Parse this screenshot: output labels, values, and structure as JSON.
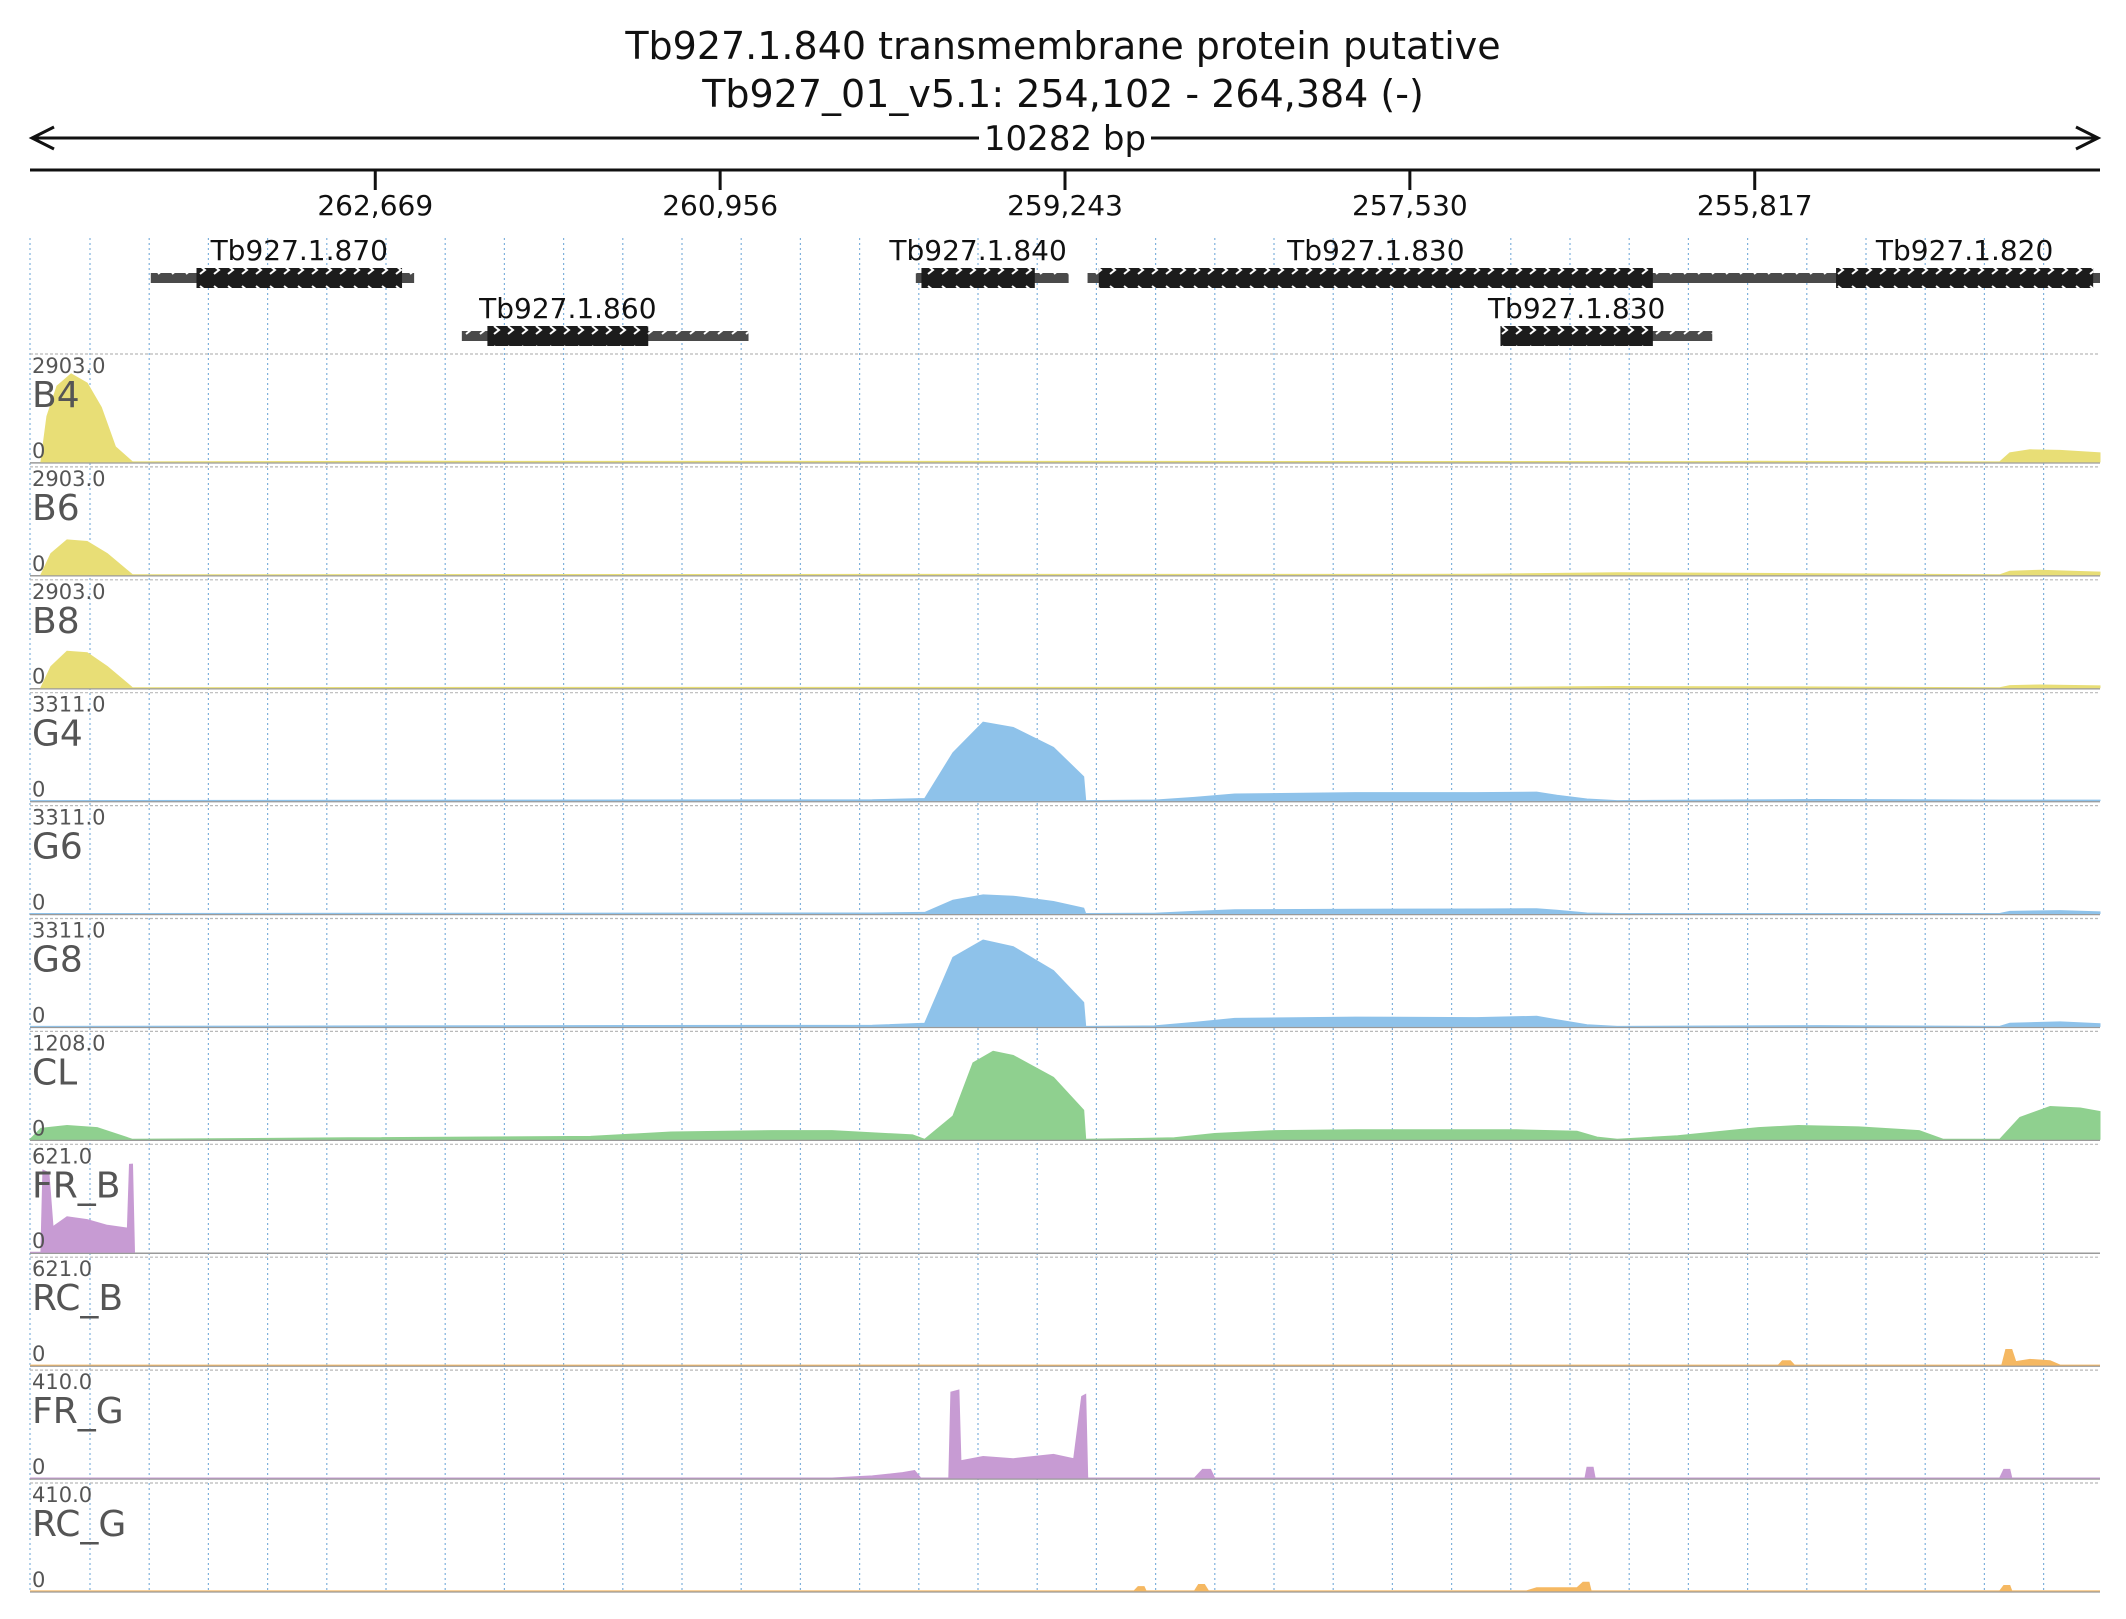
{
  "title": "Tb927.1.840  transmembrane protein  putative",
  "subtitle": "Tb927_01_v5.1: 254,102 - 264,384 (-)",
  "span_label": "10282 bp",
  "colors": {
    "yellow": "#e8de76",
    "blue": "#8ec2ea",
    "green": "#8fd08f",
    "purple": "#c79bd3",
    "orange": "#f5b862",
    "gene_thick": "#1c1c1c",
    "gene_thin": "#4a4a4a",
    "grid": "#7fb1dc",
    "axis": "#111111",
    "label": "#555555"
  },
  "chart_data": {
    "type": "area",
    "x_axis": {
      "start": 264384,
      "end": 254102,
      "strand": "-",
      "ticks": [
        "262,669",
        "260,956",
        "259,243",
        "257,530",
        "255,817"
      ],
      "tick_values": [
        262669,
        260956,
        259243,
        257530,
        255817
      ]
    },
    "genes": [
      {
        "name": "Tb927.1.870",
        "row": 0,
        "start": 263784,
        "end": 262476,
        "cds_start": 263557,
        "cds_end": 262536
      },
      {
        "name": "Tb927.1.860",
        "row": 1,
        "start": 262239,
        "end": 260815,
        "cds_start": 262112,
        "cds_end": 261313
      },
      {
        "name": "Tb927.1.840",
        "row": 0,
        "start": 259984,
        "end": 259225,
        "cds_start": 259956,
        "cds_end": 259393
      },
      {
        "name": "Tb927.1.830",
        "row": 0,
        "start": 259131,
        "end": 254102,
        "cds_start": 259075,
        "cds_end": 256323
      },
      {
        "name": "Tb927.1.830",
        "row": 1,
        "start": 257080,
        "end": 256028,
        "cds_start": 257080,
        "cds_end": 256323
      },
      {
        "name": "Tb927.1.820",
        "row": 0,
        "start": 255899,
        "end": 254269,
        "cds_start": 255413,
        "cds_end": 254136
      }
    ],
    "tracks": [
      {
        "name": "B4",
        "max_label": "2903.0",
        "min_label": "0",
        "max": 2903,
        "color": "yellow",
        "points": [
          [
            264330,
            0
          ],
          [
            264300,
            1500
          ],
          [
            264250,
            2500
          ],
          [
            264180,
            2903
          ],
          [
            264100,
            2600
          ],
          [
            264030,
            1800
          ],
          [
            263960,
            500
          ],
          [
            263875,
            0
          ],
          [
            262500,
            20
          ],
          [
            259000,
            15
          ],
          [
            256000,
            10
          ],
          [
            255800,
            20
          ],
          [
            254600,
            0
          ],
          [
            254550,
            300
          ],
          [
            254450,
            400
          ],
          [
            254300,
            380
          ],
          [
            254102,
            300
          ]
        ]
      },
      {
        "name": "B6",
        "max_label": "2903.0",
        "min_label": "0",
        "max": 2903,
        "color": "yellow",
        "points": [
          [
            264330,
            0
          ],
          [
            264280,
            700
          ],
          [
            264200,
            1150
          ],
          [
            264100,
            1100
          ],
          [
            264000,
            700
          ],
          [
            263875,
            0
          ],
          [
            262000,
            10
          ],
          [
            257200,
            15
          ],
          [
            256500,
            70
          ],
          [
            255600,
            40
          ],
          [
            254600,
            0
          ],
          [
            254550,
            120
          ],
          [
            254400,
            150
          ],
          [
            254102,
            90
          ]
        ]
      },
      {
        "name": "B8",
        "max_label": "2903.0",
        "min_label": "0",
        "max": 2903,
        "color": "yellow",
        "points": [
          [
            264330,
            0
          ],
          [
            264280,
            700
          ],
          [
            264200,
            1200
          ],
          [
            264100,
            1150
          ],
          [
            264000,
            700
          ],
          [
            263875,
            0
          ],
          [
            262000,
            10
          ],
          [
            257200,
            10
          ],
          [
            256500,
            40
          ],
          [
            255600,
            25
          ],
          [
            254600,
            0
          ],
          [
            254550,
            70
          ],
          [
            254400,
            90
          ],
          [
            254102,
            60
          ]
        ]
      },
      {
        "name": "G4",
        "max_label": "3311.0",
        "min_label": "0",
        "max": 3311,
        "color": "blue",
        "points": [
          [
            264384,
            0
          ],
          [
            262000,
            20
          ],
          [
            260200,
            30
          ],
          [
            259940,
            80
          ],
          [
            259800,
            1800
          ],
          [
            259650,
            2950
          ],
          [
            259500,
            2750
          ],
          [
            259300,
            2000
          ],
          [
            259150,
            900
          ],
          [
            259140,
            0
          ],
          [
            258800,
            20
          ],
          [
            258600,
            120
          ],
          [
            258400,
            250
          ],
          [
            257800,
            300
          ],
          [
            257200,
            300
          ],
          [
            256900,
            320
          ],
          [
            256800,
            200
          ],
          [
            256650,
            60
          ],
          [
            256500,
            0
          ],
          [
            255500,
            40
          ],
          [
            254600,
            20
          ],
          [
            254102,
            20
          ]
        ]
      },
      {
        "name": "G6",
        "max_label": "3311.0",
        "min_label": "0",
        "max": 3311,
        "color": "blue",
        "points": [
          [
            264384,
            0
          ],
          [
            262000,
            10
          ],
          [
            260200,
            20
          ],
          [
            259940,
            40
          ],
          [
            259800,
            500
          ],
          [
            259650,
            700
          ],
          [
            259500,
            650
          ],
          [
            259300,
            450
          ],
          [
            259150,
            200
          ],
          [
            259140,
            0
          ],
          [
            258800,
            10
          ],
          [
            258600,
            80
          ],
          [
            258400,
            140
          ],
          [
            257800,
            160
          ],
          [
            257200,
            170
          ],
          [
            256900,
            180
          ],
          [
            256800,
            120
          ],
          [
            256650,
            20
          ],
          [
            256500,
            0
          ],
          [
            254600,
            0
          ],
          [
            254550,
            80
          ],
          [
            254300,
            110
          ],
          [
            254102,
            60
          ]
        ]
      },
      {
        "name": "G8",
        "max_label": "3311.0",
        "min_label": "0",
        "max": 3311,
        "color": "blue",
        "points": [
          [
            264384,
            0
          ],
          [
            262000,
            25
          ],
          [
            260200,
            40
          ],
          [
            259940,
            120
          ],
          [
            259800,
            2600
          ],
          [
            259650,
            3250
          ],
          [
            259500,
            3000
          ],
          [
            259300,
            2100
          ],
          [
            259150,
            900
          ],
          [
            259140,
            0
          ],
          [
            258800,
            20
          ],
          [
            258600,
            150
          ],
          [
            258400,
            300
          ],
          [
            257800,
            350
          ],
          [
            257200,
            330
          ],
          [
            256900,
            380
          ],
          [
            256800,
            250
          ],
          [
            256650,
            60
          ],
          [
            256500,
            0
          ],
          [
            255500,
            30
          ],
          [
            254600,
            0
          ],
          [
            254550,
            120
          ],
          [
            254300,
            170
          ],
          [
            254102,
            100
          ]
        ]
      },
      {
        "name": "CL",
        "max_label": "1208.0",
        "min_label": "0",
        "max": 1208,
        "color": "green",
        "points": [
          [
            264384,
            0
          ],
          [
            264330,
            150
          ],
          [
            264200,
            190
          ],
          [
            264050,
            160
          ],
          [
            263875,
            0
          ],
          [
            262800,
            20
          ],
          [
            261600,
            40
          ],
          [
            261200,
            100
          ],
          [
            260700,
            120
          ],
          [
            260400,
            120
          ],
          [
            260000,
            60
          ],
          [
            259940,
            0
          ],
          [
            259800,
            320
          ],
          [
            259700,
            1050
          ],
          [
            259600,
            1208
          ],
          [
            259500,
            1150
          ],
          [
            259400,
            1000
          ],
          [
            259300,
            850
          ],
          [
            259150,
            400
          ],
          [
            259140,
            0
          ],
          [
            258700,
            20
          ],
          [
            258500,
            80
          ],
          [
            258200,
            120
          ],
          [
            257800,
            130
          ],
          [
            257000,
            130
          ],
          [
            256700,
            110
          ],
          [
            256600,
            30
          ],
          [
            256500,
            0
          ],
          [
            256200,
            50
          ],
          [
            255800,
            160
          ],
          [
            255600,
            190
          ],
          [
            255300,
            170
          ],
          [
            255000,
            120
          ],
          [
            254880,
            0
          ],
          [
            254600,
            0
          ],
          [
            254500,
            300
          ],
          [
            254350,
            450
          ],
          [
            254200,
            430
          ],
          [
            254102,
            380
          ]
        ]
      },
      {
        "name": "FR_B",
        "max_label": "621.0",
        "min_label": "0",
        "max": 621,
        "color": "purple",
        "points": [
          [
            264330,
            0
          ],
          [
            264320,
            580
          ],
          [
            264290,
            560
          ],
          [
            264270,
            180
          ],
          [
            264200,
            250
          ],
          [
            264100,
            230
          ],
          [
            264000,
            190
          ],
          [
            263900,
            170
          ],
          [
            263890,
            620
          ],
          [
            263875,
            621
          ],
          [
            263865,
            0
          ],
          [
            264384,
            0
          ]
        ]
      },
      {
        "name": "RC_B",
        "max_label": "621.0",
        "min_label": "0",
        "max": 621,
        "color": "orange",
        "points": [
          [
            264384,
            0
          ],
          [
            255700,
            0
          ],
          [
            255680,
            30
          ],
          [
            255640,
            30
          ],
          [
            255620,
            0
          ],
          [
            254590,
            0
          ],
          [
            254570,
            110
          ],
          [
            254540,
            110
          ],
          [
            254520,
            25
          ],
          [
            254450,
            40
          ],
          [
            254350,
            30
          ],
          [
            254300,
            0
          ],
          [
            254102,
            0
          ]
        ]
      },
      {
        "name": "FR_G",
        "max_label": "410.0",
        "min_label": "0",
        "max": 410,
        "color": "purple",
        "points": [
          [
            264384,
            0
          ],
          [
            260400,
            0
          ],
          [
            260200,
            10
          ],
          [
            260050,
            25
          ],
          [
            259990,
            35
          ],
          [
            259960,
            0
          ],
          [
            259820,
            0
          ],
          [
            259810,
            400
          ],
          [
            259770,
            410
          ],
          [
            259760,
            80
          ],
          [
            259650,
            100
          ],
          [
            259500,
            90
          ],
          [
            259300,
            110
          ],
          [
            259200,
            90
          ],
          [
            259160,
            380
          ],
          [
            259140,
            390
          ],
          [
            259130,
            0
          ],
          [
            258600,
            0
          ],
          [
            258560,
            40
          ],
          [
            258520,
            40
          ],
          [
            258500,
            0
          ],
          [
            256660,
            0
          ],
          [
            256650,
            50
          ],
          [
            256620,
            50
          ],
          [
            256610,
            0
          ],
          [
            254600,
            0
          ],
          [
            254580,
            40
          ],
          [
            254550,
            40
          ],
          [
            254540,
            0
          ],
          [
            254102,
            0
          ]
        ]
      },
      {
        "name": "RC_G",
        "max_label": "410.0",
        "min_label": "0",
        "max": 410,
        "color": "orange",
        "points": [
          [
            264384,
            0
          ],
          [
            258900,
            0
          ],
          [
            258880,
            20
          ],
          [
            258850,
            20
          ],
          [
            258840,
            0
          ],
          [
            258600,
            0
          ],
          [
            258580,
            30
          ],
          [
            258550,
            30
          ],
          [
            258530,
            0
          ],
          [
            256950,
            0
          ],
          [
            256900,
            15
          ],
          [
            256700,
            15
          ],
          [
            256670,
            40
          ],
          [
            256640,
            40
          ],
          [
            256630,
            0
          ],
          [
            254600,
            0
          ],
          [
            254580,
            25
          ],
          [
            254550,
            25
          ],
          [
            254540,
            0
          ],
          [
            254102,
            0
          ]
        ]
      }
    ]
  }
}
